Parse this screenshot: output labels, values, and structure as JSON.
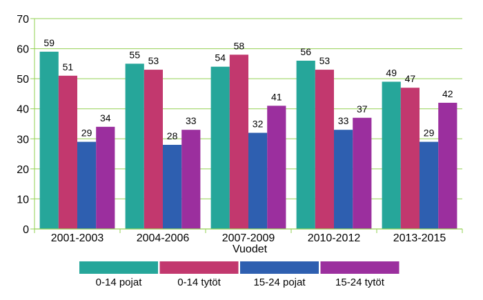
{
  "chart_data": {
    "type": "bar",
    "title": "",
    "xlabel": "Vuodet",
    "ylabel": "",
    "ylim": [
      0,
      70
    ],
    "yticks": [
      0,
      10,
      20,
      30,
      40,
      50,
      60,
      70
    ],
    "grid": true,
    "legend_position": "bottom",
    "categories": [
      "2001-2003",
      "2004-2006",
      "2007-2009",
      "2010-2012",
      "2013-2015"
    ],
    "series": [
      {
        "name": "0-14 pojat",
        "color": "#26A69A",
        "values": [
          59,
          55,
          54,
          56,
          49
        ]
      },
      {
        "name": "0-14 tytöt",
        "color": "#C2386E",
        "values": [
          51,
          53,
          58,
          53,
          47
        ]
      },
      {
        "name": "15-24 pojat",
        "color": "#2E5FB0",
        "values": [
          29,
          28,
          32,
          33,
          29
        ]
      },
      {
        "name": "15-24 tytöt",
        "color": "#9B2F9E",
        "values": [
          34,
          33,
          41,
          37,
          42
        ]
      }
    ],
    "colors": {
      "grid": "#92D050",
      "axis": "#92D050"
    }
  }
}
